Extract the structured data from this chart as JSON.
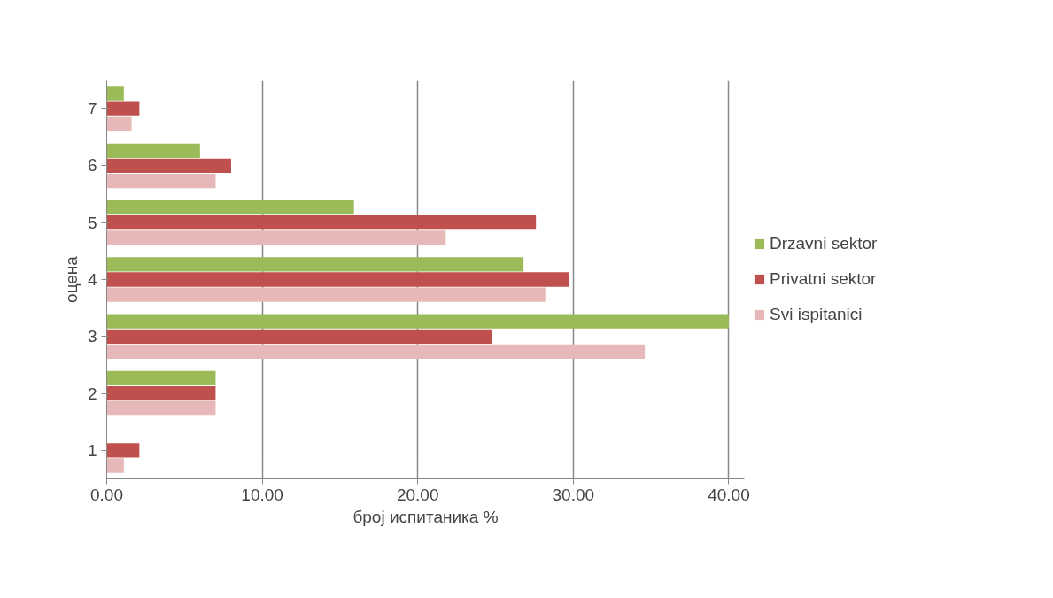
{
  "chart_data": {
    "type": "bar",
    "orientation": "horizontal",
    "xlabel": "број испитаника %",
    "ylabel": "оцена",
    "categories": [
      "7",
      "6",
      "5",
      "4",
      "3",
      "2",
      "1"
    ],
    "series": [
      {
        "name": "Drzavni sektor",
        "color": "#9bbb59",
        "values": [
          1.1,
          6.0,
          15.9,
          26.8,
          40.0,
          7.0,
          0.0
        ]
      },
      {
        "name": "Privatni sektor",
        "color": "#c0504d",
        "values": [
          2.1,
          8.0,
          27.6,
          29.7,
          24.8,
          7.0,
          2.1
        ]
      },
      {
        "name": "Svi ispitanici",
        "color": "#e6b9b8",
        "values": [
          1.6,
          7.0,
          21.8,
          28.2,
          34.6,
          7.0,
          1.1
        ]
      }
    ],
    "xlim": [
      0,
      41
    ],
    "xticks": [
      {
        "value": 0,
        "label": "0.00"
      },
      {
        "value": 10,
        "label": "10.00"
      },
      {
        "value": 20,
        "label": "20.00"
      },
      {
        "value": 30,
        "label": "30.00"
      },
      {
        "value": 40,
        "label": "40.00"
      }
    ],
    "grid": "x",
    "legend": "right"
  }
}
